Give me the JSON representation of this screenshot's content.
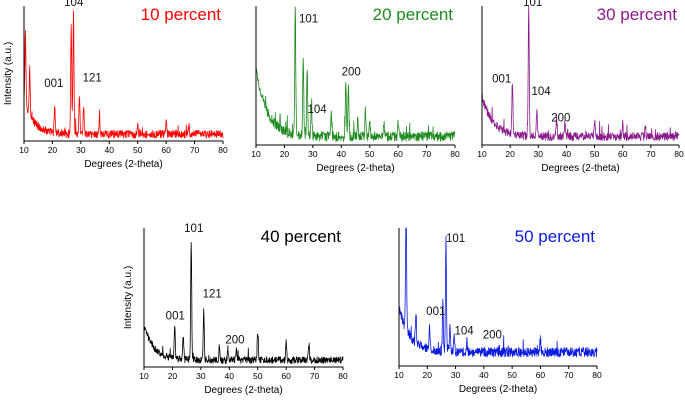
{
  "chart_data": [
    {
      "type": "line",
      "title": "10 percent",
      "color": "#ff0000",
      "xlabel": "Degrees (2-theta)",
      "ylabel": "Intensity (a.u.)",
      "xlim": [
        10,
        80
      ],
      "xticks": [
        10,
        20,
        30,
        40,
        50,
        60,
        70,
        80
      ],
      "baseline": {
        "start": 0.3,
        "end": 0.05,
        "decay": 9,
        "noise": 0.03
      },
      "peaks": [
        {
          "x": 10.5,
          "height": 0.55
        },
        {
          "x": 12,
          "height": 0.35
        },
        {
          "x": 20.8,
          "height": 0.18
        },
        {
          "x": 26.6,
          "height": 0.82
        },
        {
          "x": 27.4,
          "height": 0.9
        },
        {
          "x": 29.5,
          "height": 0.3
        },
        {
          "x": 31,
          "height": 0.22
        },
        {
          "x": 36.5,
          "height": 0.12
        },
        {
          "x": 50,
          "height": 0.08
        },
        {
          "x": 60,
          "height": 0.08
        },
        {
          "x": 68,
          "height": 0.06
        }
      ],
      "annotations": [
        {
          "label": "104",
          "x": 27.5,
          "height": 1.0
        },
        {
          "label": "001",
          "x": 20.5,
          "height": 0.4
        },
        {
          "label": "121",
          "x": 34,
          "height": 0.44
        }
      ]
    },
    {
      "type": "line",
      "title": "20 percent",
      "color": "#1f8a1f",
      "xlabel": "Degrees (2-theta)",
      "ylabel": "",
      "xlim": [
        10,
        80
      ],
      "xticks": [
        10,
        20,
        30,
        40,
        50,
        60,
        70,
        80
      ],
      "baseline": {
        "start": 0.55,
        "end": 0.06,
        "decay": 8,
        "noise": 0.035
      },
      "peaks": [
        {
          "x": 23.8,
          "height": 0.92
        },
        {
          "x": 26.6,
          "height": 0.55
        },
        {
          "x": 28,
          "height": 0.48
        },
        {
          "x": 29.5,
          "height": 0.22
        },
        {
          "x": 36.5,
          "height": 0.18
        },
        {
          "x": 41.6,
          "height": 0.42
        },
        {
          "x": 42.5,
          "height": 0.38
        },
        {
          "x": 45.8,
          "height": 0.12
        },
        {
          "x": 48.5,
          "height": 0.2
        },
        {
          "x": 50,
          "height": 0.14
        },
        {
          "x": 55,
          "height": 0.1
        },
        {
          "x": 60,
          "height": 0.1
        }
      ],
      "annotations": [
        {
          "label": "101",
          "x": 28.5,
          "height": 0.88
        },
        {
          "label": "200",
          "x": 43.5,
          "height": 0.5
        },
        {
          "label": "104",
          "x": 31.5,
          "height": 0.23
        }
      ]
    },
    {
      "type": "line",
      "title": "30 percent",
      "color": "#8b1a8b",
      "xlabel": "Degrees (2-theta)",
      "ylabel": "",
      "xlim": [
        10,
        80
      ],
      "xticks": [
        10,
        20,
        30,
        40,
        50,
        60,
        70,
        80
      ],
      "baseline": {
        "start": 0.35,
        "end": 0.06,
        "decay": 8,
        "noise": 0.03
      },
      "peaks": [
        {
          "x": 20.8,
          "height": 0.38
        },
        {
          "x": 26.6,
          "height": 0.95
        },
        {
          "x": 29.5,
          "height": 0.2
        },
        {
          "x": 36.5,
          "height": 0.12
        },
        {
          "x": 39.5,
          "height": 0.1
        },
        {
          "x": 50,
          "height": 0.12
        },
        {
          "x": 60,
          "height": 0.08
        },
        {
          "x": 68,
          "height": 0.09
        }
      ],
      "annotations": [
        {
          "label": "101",
          "x": 28,
          "height": 1.0
        },
        {
          "label": "001",
          "x": 17,
          "height": 0.45
        },
        {
          "label": "104",
          "x": 31,
          "height": 0.36
        },
        {
          "label": "200",
          "x": 38,
          "height": 0.17
        }
      ]
    },
    {
      "type": "line",
      "title": "40 percent",
      "color": "#000000",
      "xlabel": "Degrees (2-theta)",
      "ylabel": "Intensity (a.u.)",
      "xlim": [
        10,
        80
      ],
      "xticks": [
        10,
        20,
        30,
        40,
        50,
        60,
        70,
        80
      ],
      "baseline": {
        "start": 0.3,
        "end": 0.05,
        "decay": 9,
        "noise": 0.025
      },
      "peaks": [
        {
          "x": 20.8,
          "height": 0.25
        },
        {
          "x": 23.8,
          "height": 0.18
        },
        {
          "x": 26.6,
          "height": 0.85
        },
        {
          "x": 31,
          "height": 0.35
        },
        {
          "x": 36.5,
          "height": 0.1
        },
        {
          "x": 39.5,
          "height": 0.08
        },
        {
          "x": 42.5,
          "height": 0.08
        },
        {
          "x": 50,
          "height": 0.2
        },
        {
          "x": 60,
          "height": 0.14
        },
        {
          "x": 68,
          "height": 0.1
        }
      ],
      "annotations": [
        {
          "label": "101",
          "x": 27.5,
          "height": 0.97
        },
        {
          "label": "001",
          "x": 21,
          "height": 0.34
        },
        {
          "label": "121",
          "x": 34,
          "height": 0.5
        },
        {
          "label": "200",
          "x": 42,
          "height": 0.17
        }
      ]
    },
    {
      "type": "line",
      "title": "50 percent",
      "color": "#0a1adf",
      "xlabel": "Degrees (2-theta)",
      "ylabel": "",
      "xlim": [
        10,
        80
      ],
      "xticks": [
        10,
        20,
        30,
        40,
        50,
        60,
        70,
        80
      ],
      "baseline": {
        "start": 0.42,
        "end": 0.1,
        "decay": 8,
        "noise": 0.035
      },
      "peaks": [
        {
          "x": 12.5,
          "height": 0.95
        },
        {
          "x": 16,
          "height": 0.22
        },
        {
          "x": 20.8,
          "height": 0.18
        },
        {
          "x": 25.5,
          "height": 0.35
        },
        {
          "x": 26.6,
          "height": 0.83
        },
        {
          "x": 28,
          "height": 0.2
        },
        {
          "x": 29.5,
          "height": 0.15
        },
        {
          "x": 34,
          "height": 0.08
        },
        {
          "x": 60,
          "height": 0.07
        }
      ],
      "annotations": [
        {
          "label": "101",
          "x": 30,
          "height": 0.9
        },
        {
          "label": "001",
          "x": 23,
          "height": 0.37
        },
        {
          "label": "104",
          "x": 33,
          "height": 0.23
        },
        {
          "label": "200",
          "x": 43,
          "height": 0.2
        }
      ]
    }
  ]
}
